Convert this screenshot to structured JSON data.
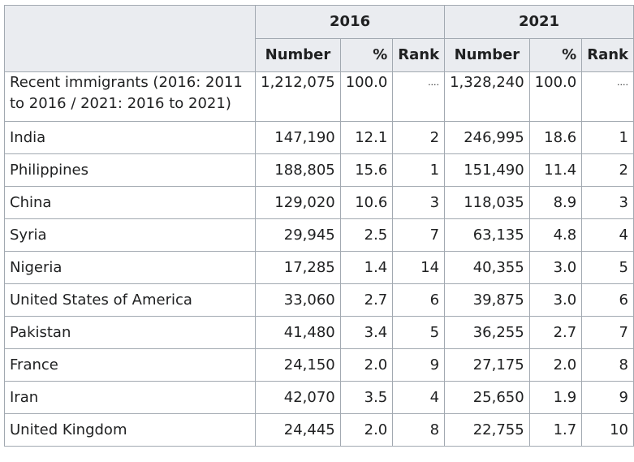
{
  "table": {
    "year_headers": [
      "2016",
      "2021"
    ],
    "sub_headers": [
      "Number",
      "%",
      "Rank",
      "Number",
      "%",
      "Rank"
    ],
    "rows": [
      {
        "name": "Recent immigrants (2016: 2011 to 2016 / 2021: 2016 to 2021)",
        "n2016": "1,212,075",
        "p2016": "100.0",
        "r2016": "....",
        "n2021": "1,328,240",
        "p2021": "100.0",
        "r2021": "...."
      },
      {
        "name": "India",
        "n2016": "147,190",
        "p2016": "12.1",
        "r2016": "2",
        "n2021": "246,995",
        "p2021": "18.6",
        "r2021": "1"
      },
      {
        "name": "Philippines",
        "n2016": "188,805",
        "p2016": "15.6",
        "r2016": "1",
        "n2021": "151,490",
        "p2021": "11.4",
        "r2021": "2"
      },
      {
        "name": "China",
        "n2016": "129,020",
        "p2016": "10.6",
        "r2016": "3",
        "n2021": "118,035",
        "p2021": "8.9",
        "r2021": "3"
      },
      {
        "name": "Syria",
        "n2016": "29,945",
        "p2016": "2.5",
        "r2016": "7",
        "n2021": "63,135",
        "p2021": "4.8",
        "r2021": "4"
      },
      {
        "name": "Nigeria",
        "n2016": "17,285",
        "p2016": "1.4",
        "r2016": "14",
        "n2021": "40,355",
        "p2021": "3.0",
        "r2021": "5"
      },
      {
        "name": "United States of America",
        "n2016": "33,060",
        "p2016": "2.7",
        "r2016": "6",
        "n2021": "39,875",
        "p2021": "3.0",
        "r2021": "6"
      },
      {
        "name": "Pakistan",
        "n2016": "41,480",
        "p2016": "3.4",
        "r2016": "5",
        "n2021": "36,255",
        "p2021": "2.7",
        "r2021": "7"
      },
      {
        "name": "France",
        "n2016": "24,150",
        "p2016": "2.0",
        "r2016": "9",
        "n2021": "27,175",
        "p2021": "2.0",
        "r2021": "8"
      },
      {
        "name": "Iran",
        "n2016": "42,070",
        "p2016": "3.5",
        "r2016": "4",
        "n2021": "25,650",
        "p2021": "1.9",
        "r2021": "9"
      },
      {
        "name": "United Kingdom",
        "n2016": "24,445",
        "p2016": "2.0",
        "r2016": "8",
        "n2021": "22,755",
        "p2021": "1.7",
        "r2021": "10"
      }
    ]
  }
}
